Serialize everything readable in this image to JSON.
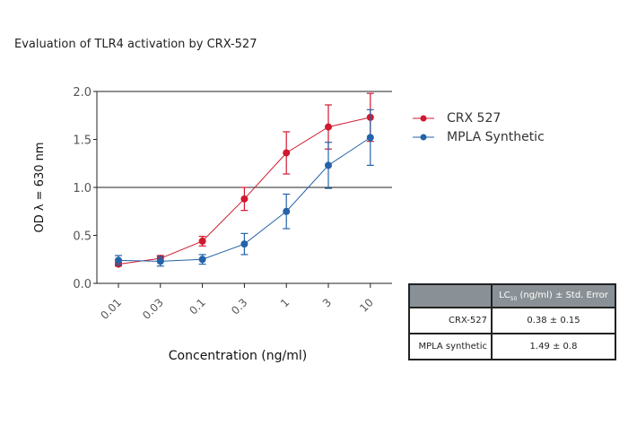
{
  "title": "Evaluation of TLR4 activation by CRX-527",
  "chart_data": {
    "type": "line",
    "title": "Evaluation of TLR4 activation by CRX-527",
    "xlabel": "Concentration (ng/ml)",
    "ylabel": "OD λ = 630 nm",
    "categories": [
      "0.01",
      "0.03",
      "0.1",
      "0.3",
      "1",
      "3",
      "10"
    ],
    "yticks": [
      "0.0",
      "0.5",
      "1.0",
      "1.5",
      "2.0"
    ],
    "ylim": [
      0,
      2.0
    ],
    "grid_lines_y": [
      1.0,
      2.0
    ],
    "legend_position": "right",
    "series": [
      {
        "name": "CRX 527",
        "color": "#d0192e",
        "values": [
          0.2,
          0.26,
          0.44,
          0.88,
          1.36,
          1.63,
          1.73
        ],
        "errors": [
          0.02,
          0.03,
          0.05,
          0.12,
          0.22,
          0.23,
          0.25
        ]
      },
      {
        "name": "MPLA Synthetic",
        "color": "#2563a8",
        "values": [
          0.24,
          0.23,
          0.25,
          0.41,
          0.75,
          1.23,
          1.52
        ],
        "errors": [
          0.05,
          0.05,
          0.05,
          0.11,
          0.18,
          0.24,
          0.29
        ]
      }
    ]
  },
  "table": {
    "header": [
      "",
      "LC",
      "50",
      "(ng/ml) ± Std. Error"
    ],
    "rows": [
      [
        "CRX-527",
        "0.38 ± 0.15"
      ],
      [
        "MPLA synthetic",
        "1.49 ± 0.8"
      ]
    ]
  }
}
